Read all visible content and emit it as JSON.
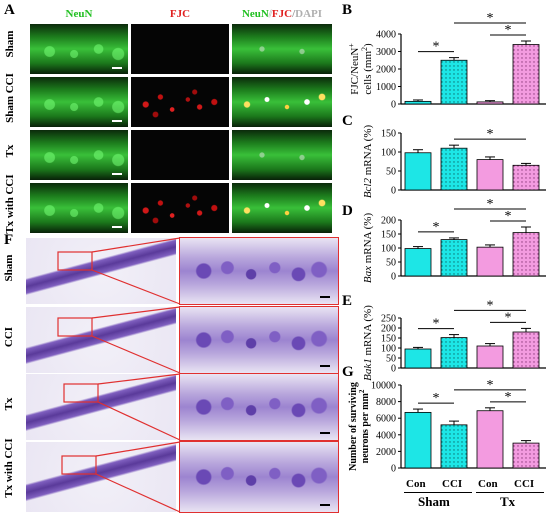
{
  "panels": {
    "A": "A",
    "B": "B",
    "C": "C",
    "D": "D",
    "E": "E",
    "F": "F",
    "G": "G"
  },
  "panel_a": {
    "channels": {
      "neun": "NeuN",
      "fjc": "FJC",
      "merge_neun": "NeuN",
      "merge_sep1": "/",
      "merge_fjc": "FJC",
      "merge_sep2": "/",
      "merge_dapi": "DAPI"
    },
    "rows": [
      "Sham",
      "Sham CCI",
      "Tx",
      "Tx with CCI"
    ],
    "colors": {
      "neun": "#22c022",
      "fjc": "#e02020",
      "dapi": "#b0b0b0"
    }
  },
  "panel_f": {
    "rows": [
      "Sham",
      "CCI",
      "Tx",
      "Tx with CCI"
    ],
    "box_color": "#e03030"
  },
  "groups": {
    "sham": "Sham",
    "tx": "Tx",
    "con": "Con",
    "cci": "CCI"
  },
  "colors": {
    "cyan": "#1de6e6",
    "pink": "#f39be0",
    "sig": "*"
  },
  "chart_data": [
    {
      "panel": "B",
      "type": "bar",
      "categories": [
        "Sham Con",
        "Sham CCI",
        "Tx Con",
        "Tx CCI"
      ],
      "values": [
        150,
        2500,
        120,
        3400
      ],
      "errors": [
        80,
        150,
        70,
        200
      ],
      "ylabel_line1": "FJC/NeuN",
      "ylabel_line2": "cells (mm",
      "ylim": [
        0,
        4000
      ],
      "yticks": [
        "0",
        "1000",
        "2000",
        "3000",
        "4000"
      ],
      "significance": [
        "*",
        "*",
        "*"
      ]
    },
    {
      "panel": "C",
      "type": "bar",
      "categories": [
        "Sham Con",
        "Sham CCI",
        "Tx Con",
        "Tx CCI"
      ],
      "values": [
        98,
        110,
        80,
        65
      ],
      "errors": [
        8,
        8,
        7,
        5
      ],
      "ylabel_italic": "Bcl2",
      "ylabel_rest": " mRNA (%)",
      "ylim": [
        0,
        150
      ],
      "yticks": [
        "0",
        "50",
        "100",
        "150"
      ],
      "significance": [
        "*"
      ]
    },
    {
      "panel": "D",
      "type": "bar",
      "categories": [
        "Sham Con",
        "Sham CCI",
        "Tx Con",
        "Tx CCI"
      ],
      "values": [
        98,
        130,
        103,
        155
      ],
      "errors": [
        7,
        6,
        8,
        20
      ],
      "ylabel_italic": "Bax",
      "ylabel_rest": " mRNA (%)",
      "ylim": [
        0,
        200
      ],
      "yticks": [
        "0",
        "50",
        "100",
        "150",
        "200"
      ],
      "significance": [
        "*",
        "*",
        "*"
      ]
    },
    {
      "panel": "E",
      "type": "bar",
      "categories": [
        "Sham Con",
        "Sham CCI",
        "Tx Con",
        "Tx CCI"
      ],
      "values": [
        95,
        152,
        110,
        180
      ],
      "errors": [
        8,
        15,
        12,
        18
      ],
      "ylabel_italic": "Bak1",
      "ylabel_rest": " mRNA (%)",
      "ylim": [
        0,
        250
      ],
      "yticks": [
        "0",
        "50",
        "100",
        "150",
        "200",
        "250"
      ],
      "significance": [
        "*",
        "*",
        "*"
      ]
    },
    {
      "panel": "G",
      "type": "bar",
      "categories": [
        "Sham Con",
        "Sham CCI",
        "Tx Con",
        "Tx CCI"
      ],
      "values": [
        6700,
        5200,
        6900,
        3000
      ],
      "errors": [
        400,
        450,
        350,
        300
      ],
      "ylabel_line1": "Number of surviving",
      "ylabel_line2": "neurons per mm",
      "ylim": [
        0,
        10000
      ],
      "yticks": [
        "0",
        "2000",
        "4000",
        "6000",
        "8000",
        "10000"
      ],
      "significance": [
        "*",
        "*",
        "*"
      ]
    }
  ]
}
